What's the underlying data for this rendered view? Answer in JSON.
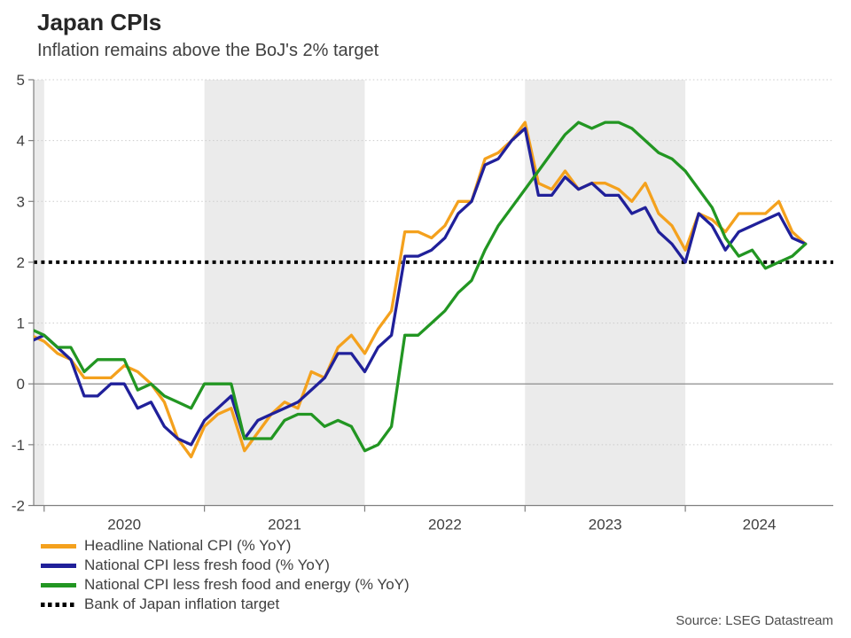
{
  "header": {
    "title": "Japan CPIs",
    "subtitle": "Inflation remains above the BoJ's 2% target"
  },
  "source": {
    "label": "Source: LSEG Datastream"
  },
  "legend": {
    "position": "bottom-left",
    "items": [
      {
        "label": "Headline National CPI (% YoY)",
        "color": "#F4A11D",
        "style": "solid"
      },
      {
        "label": "National CPI less fresh food (% YoY)",
        "color": "#20209A",
        "style": "solid"
      },
      {
        "label": "National CPI less fresh food and energy (% YoY)",
        "color": "#229622",
        "style": "solid"
      },
      {
        "label": "Bank of Japan inflation target",
        "color": "#000000",
        "style": "dotted"
      }
    ]
  },
  "chart_data": {
    "type": "line",
    "title": "Japan CPIs",
    "subtitle": "Inflation remains above the BoJ's 2% target",
    "x_frequency": "monthly",
    "x_start": "2019-12",
    "x_end": "2024-10",
    "x_tick_labels": [
      "2020",
      "2021",
      "2022",
      "2023",
      "2024"
    ],
    "ylim": [
      -2,
      5
    ],
    "y_ticks": [
      5,
      4,
      3,
      2,
      1,
      0,
      -1,
      -2
    ],
    "grid": "horizontal-dotted",
    "zero_line_value": 0,
    "target_line": {
      "value": 2,
      "label": "Bank of Japan inflation target",
      "color": "#000000"
    },
    "shaded_bands": [
      [
        "2019-12",
        "2020-01"
      ],
      [
        "2021-01",
        "2022-01"
      ],
      [
        "2023-01",
        "2024-01"
      ]
    ],
    "band_color": "#EBEBEB",
    "series": [
      {
        "name": "Headline National CPI (% YoY)",
        "color": "#F4A11D",
        "values": [
          0.8,
          0.7,
          0.5,
          0.4,
          0.1,
          0.1,
          0.1,
          0.3,
          0.2,
          0.0,
          -0.3,
          -0.9,
          -1.2,
          -0.7,
          -0.5,
          -0.4,
          -1.1,
          -0.8,
          -0.5,
          -0.3,
          -0.4,
          0.2,
          0.1,
          0.6,
          0.8,
          0.5,
          0.9,
          1.2,
          2.5,
          2.5,
          2.4,
          2.6,
          3.0,
          3.0,
          3.7,
          3.8,
          4.0,
          4.3,
          3.3,
          3.2,
          3.5,
          3.2,
          3.3,
          3.3,
          3.2,
          3.0,
          3.3,
          2.8,
          2.6,
          2.2,
          2.8,
          2.7,
          2.5,
          2.8,
          2.8,
          2.8,
          3.0,
          2.5,
          2.3
        ]
      },
      {
        "name": "National CPI less fresh food (% YoY)",
        "color": "#20209A",
        "values": [
          0.7,
          0.8,
          0.6,
          0.4,
          -0.2,
          -0.2,
          0.0,
          0.0,
          -0.4,
          -0.3,
          -0.7,
          -0.9,
          -1.0,
          -0.6,
          -0.4,
          -0.2,
          -0.9,
          -0.6,
          -0.5,
          -0.4,
          -0.3,
          -0.1,
          0.1,
          0.5,
          0.5,
          0.2,
          0.6,
          0.8,
          2.1,
          2.1,
          2.2,
          2.4,
          2.8,
          3.0,
          3.6,
          3.7,
          4.0,
          4.2,
          3.1,
          3.1,
          3.4,
          3.2,
          3.3,
          3.1,
          3.1,
          2.8,
          2.9,
          2.5,
          2.3,
          2.0,
          2.8,
          2.6,
          2.2,
          2.5,
          2.6,
          2.7,
          2.8,
          2.4,
          2.3
        ]
      },
      {
        "name": "National CPI less fresh food and energy (% YoY)",
        "color": "#229622",
        "values": [
          0.9,
          0.8,
          0.6,
          0.6,
          0.2,
          0.4,
          0.4,
          0.4,
          -0.1,
          0.0,
          -0.2,
          -0.3,
          -0.4,
          0.0,
          0.0,
          0.0,
          -0.9,
          -0.9,
          -0.9,
          -0.6,
          -0.5,
          -0.5,
          -0.7,
          -0.6,
          -0.7,
          -1.1,
          -1.0,
          -0.7,
          0.8,
          0.8,
          1.0,
          1.2,
          1.5,
          1.7,
          2.2,
          2.6,
          2.9,
          3.2,
          3.5,
          3.8,
          4.1,
          4.3,
          4.2,
          4.3,
          4.3,
          4.2,
          4.0,
          3.8,
          3.7,
          3.5,
          3.2,
          2.9,
          2.4,
          2.1,
          2.2,
          1.9,
          2.0,
          2.1,
          2.3
        ]
      }
    ]
  }
}
